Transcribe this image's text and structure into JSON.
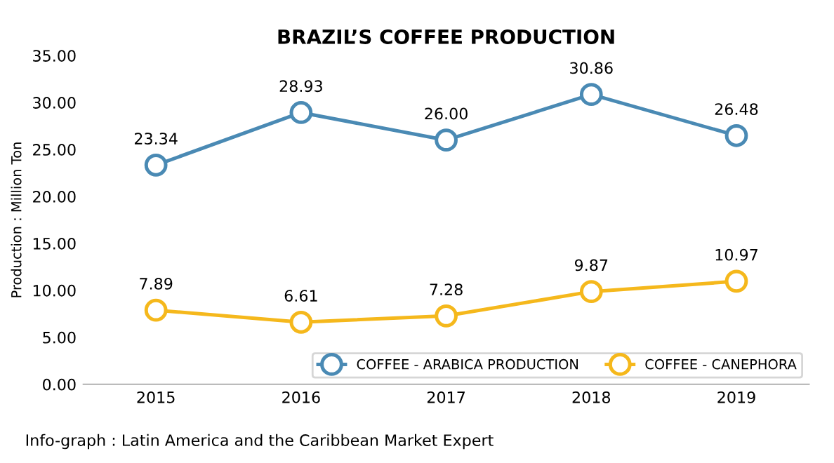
{
  "chart_data": {
    "type": "line",
    "title": "BRAZIL’S COFFEE PRODUCTION",
    "ylabel": "Production : Million Ton",
    "categories": [
      "2015",
      "2016",
      "2017",
      "2018",
      "2019"
    ],
    "series": [
      {
        "name": "COFFEE - ARABICA PRODUCTION",
        "color": "#4a8ab4",
        "values": [
          23.34,
          28.93,
          26.0,
          30.86,
          26.48
        ],
        "value_labels": [
          "23.34",
          "28.93",
          "26.00",
          "30.86",
          "26.48"
        ]
      },
      {
        "name": "COFFEE - CANEPHORA",
        "color": "#f5b81c",
        "values": [
          7.89,
          6.61,
          7.28,
          9.87,
          10.97
        ],
        "value_labels": [
          "7.89",
          "6.61",
          "7.28",
          "9.87",
          "10.97"
        ]
      }
    ],
    "ylim": [
      0,
      35
    ],
    "yticks": [
      {
        "value": 0,
        "label": "0.00"
      },
      {
        "value": 5,
        "label": "5.00"
      },
      {
        "value": 10,
        "label": "10.00"
      },
      {
        "value": 15,
        "label": "15.00"
      },
      {
        "value": 20,
        "label": "20.00"
      },
      {
        "value": 25,
        "label": "25.00"
      },
      {
        "value": 30,
        "label": "30.00"
      },
      {
        "value": 35,
        "label": "35.00"
      }
    ],
    "grid": false,
    "legend": "bottom right",
    "marker": "circle",
    "line_style": "solid",
    "annotations": [
      "Info-graph : Latin America and the Caribbean Market Expert"
    ]
  }
}
